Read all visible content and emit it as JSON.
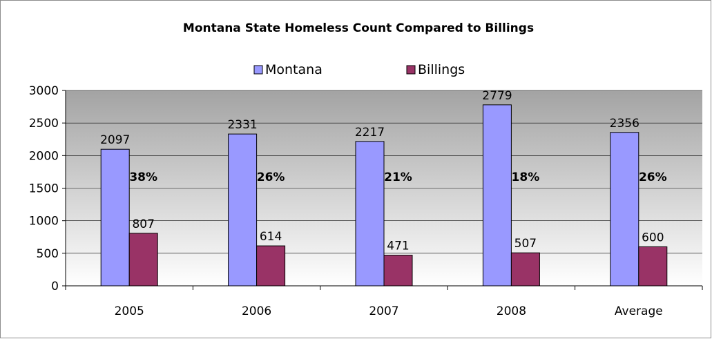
{
  "chart_data": {
    "type": "bar",
    "title": "Montana State Homeless Count Compared to Billings",
    "categories": [
      "2005",
      "2006",
      "2007",
      "2008",
      "Average"
    ],
    "series": [
      {
        "name": "Montana",
        "values": [
          2097,
          2331,
          2217,
          2779,
          2356
        ],
        "color": "#9999ff"
      },
      {
        "name": "Billings",
        "values": [
          807,
          614,
          471,
          507,
          600
        ],
        "color": "#993366"
      }
    ],
    "percent_labels": [
      "38%",
      "26%",
      "21%",
      "18%",
      "26%"
    ],
    "ylim": [
      0,
      3000
    ],
    "yticks": [
      "0",
      "500",
      "1000",
      "1500",
      "2000",
      "2500",
      "3000"
    ],
    "grid": true,
    "legend_position": "top",
    "plot_background": "gradient-gray"
  }
}
